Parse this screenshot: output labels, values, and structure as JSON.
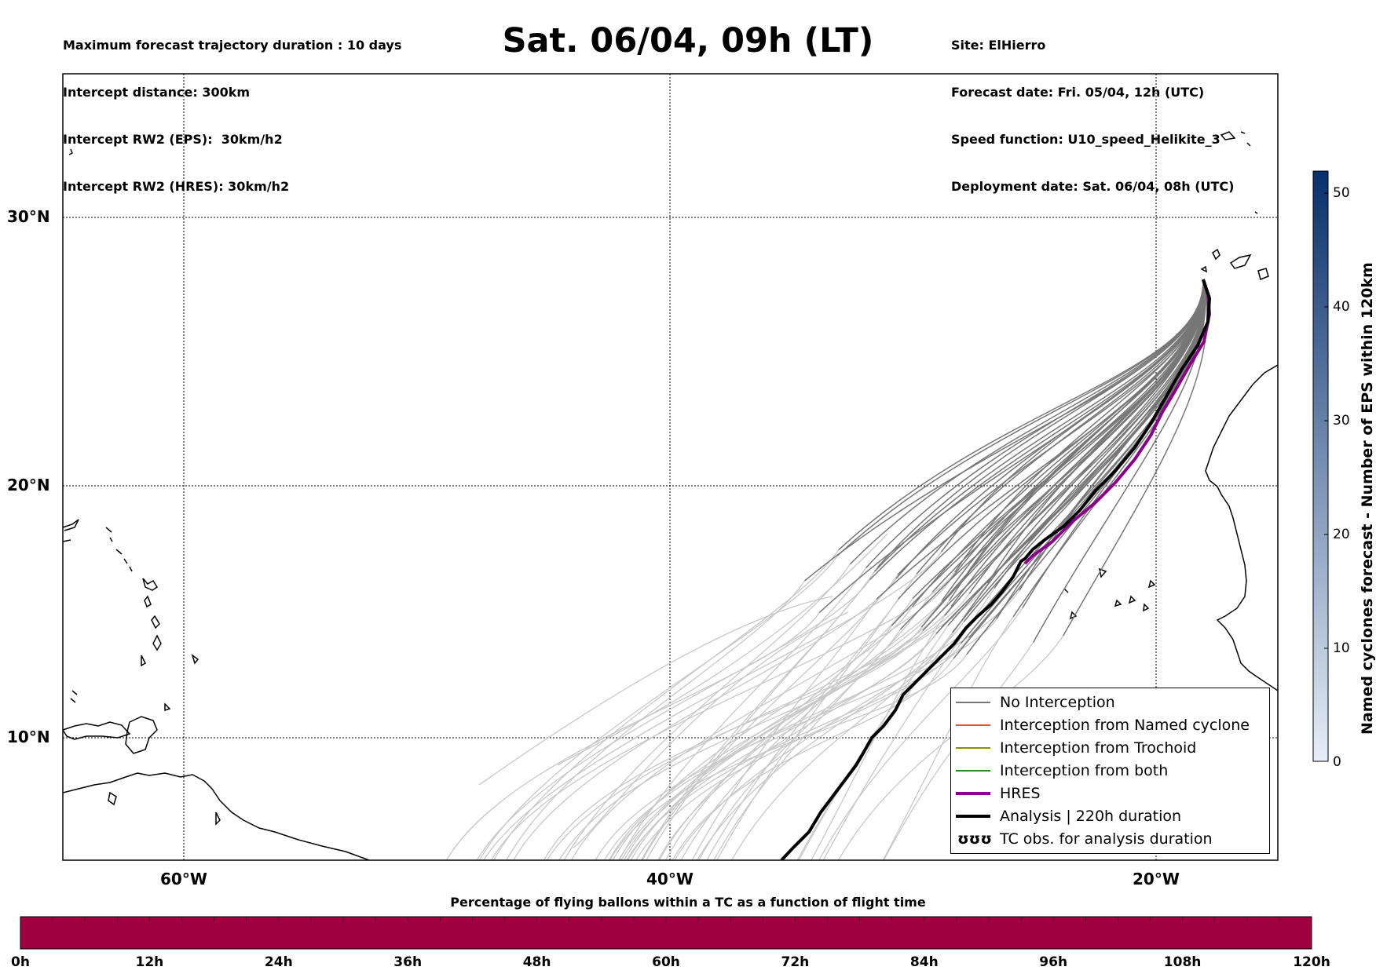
{
  "header": {
    "left_lines": [
      "Maximum forecast trajectory duration : 10 days",
      "Intercept distance: 300km",
      "Intercept RW2 (EPS):  30km/h2",
      "Intercept RW2 (HRES): 30km/h2"
    ],
    "title": "Sat. 06/04, 09h (LT)",
    "right_lines": [
      "Site: ElHierro",
      "Forecast date: Fri. 05/04, 12h (UTC)",
      "Speed function: U10_speed_Helikite_3",
      "Deployment date: Sat. 06/04, 08h (UTC)"
    ]
  },
  "map": {
    "lat_labels": [
      "30°N",
      "20°N",
      "10°N"
    ],
    "lon_labels": [
      "60°W",
      "40°W",
      "20°W"
    ],
    "colors": {
      "no_interception": "#777777",
      "eps_faded": "#c8c8c8",
      "named_cyclone": "#e8501e",
      "trochoid": "#8a8a20",
      "both": "#2a8a2a",
      "hres": "#8b008b",
      "analysis": "#000000"
    }
  },
  "legend": {
    "items": [
      {
        "label": "No Interception",
        "style": "no_interception"
      },
      {
        "label": "Interception from Named cyclone",
        "style": "named_cyclone"
      },
      {
        "label": "Interception from Trochoid",
        "style": "trochoid"
      },
      {
        "label": "Interception from both",
        "style": "both"
      },
      {
        "label": "HRES",
        "style": "hres"
      },
      {
        "label": "Analysis | 220h duration",
        "style": "analysis"
      },
      {
        "label": "TC obs. for analysis duration",
        "style": "tc_obs"
      }
    ],
    "tc_symbol": "ʊʊʊ"
  },
  "colorbar_right": {
    "label": "Named cyclones forecast - Number of EPS within 120km",
    "ticks": [
      "50",
      "40",
      "30",
      "20",
      "10",
      "0"
    ],
    "color_top": "#08306b",
    "color_bottom": "#e6eef8"
  },
  "colorbar_bottom": {
    "title": "Percentage of flying ballons within a TC as a function of flight time",
    "ticks": [
      "0h",
      "12h",
      "24h",
      "36h",
      "48h",
      "60h",
      "72h",
      "84h",
      "96h",
      "108h",
      "120h"
    ],
    "fill_color": "#9e0142",
    "fill_fraction": 1.0
  }
}
